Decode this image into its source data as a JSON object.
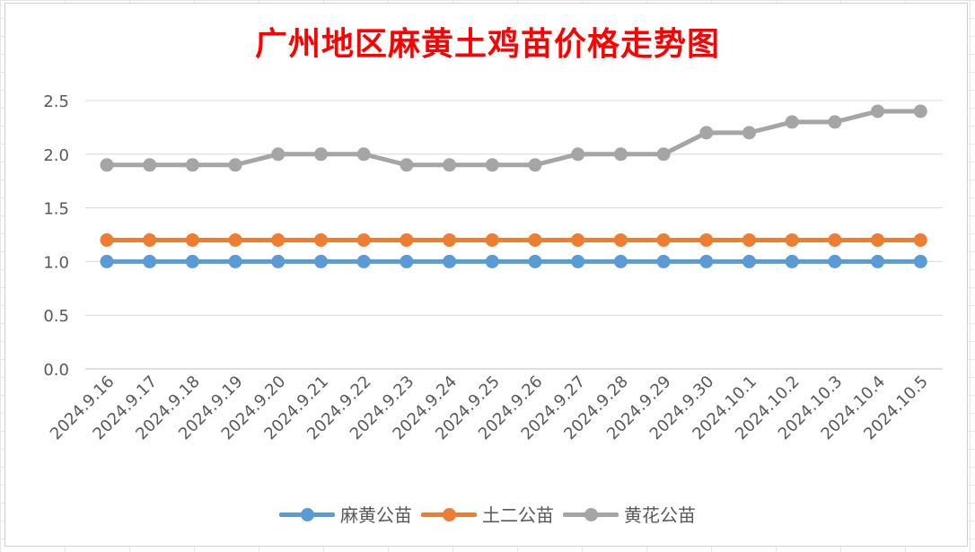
{
  "chart_data": {
    "type": "line",
    "title": "广州地区麻黄土鸡苗价格走势图",
    "categories": [
      "2024.9.16",
      "2024.9.17",
      "2024.9.18",
      "2024.9.19",
      "2024.9.20",
      "2024.9.21",
      "2024.9.22",
      "2024.9.23",
      "2024.9.24",
      "2024.9.25",
      "2024.9.26",
      "2024.9.27",
      "2024.9.28",
      "2024.9.29",
      "2024.9.30",
      "2024.10.1",
      "2024.10.2",
      "2024.10.3",
      "2024.10.4",
      "2024.10.5"
    ],
    "yticks": [
      "0.0",
      "0.5",
      "1.0",
      "1.5",
      "2.0",
      "2.5"
    ],
    "ylim": [
      0,
      2.5
    ],
    "grid": true,
    "legend_position": "bottom",
    "series": [
      {
        "name": "麻黄公苗",
        "color": "#5b9bd5",
        "values": [
          1.0,
          1.0,
          1.0,
          1.0,
          1.0,
          1.0,
          1.0,
          1.0,
          1.0,
          1.0,
          1.0,
          1.0,
          1.0,
          1.0,
          1.0,
          1.0,
          1.0,
          1.0,
          1.0,
          1.0
        ]
      },
      {
        "name": "土二公苗",
        "color": "#ed7d31",
        "values": [
          1.2,
          1.2,
          1.2,
          1.2,
          1.2,
          1.2,
          1.2,
          1.2,
          1.2,
          1.2,
          1.2,
          1.2,
          1.2,
          1.2,
          1.2,
          1.2,
          1.2,
          1.2,
          1.2,
          1.2
        ]
      },
      {
        "name": "黄花公苗",
        "color": "#a5a5a5",
        "values": [
          1.9,
          1.9,
          1.9,
          1.9,
          2.0,
          2.0,
          2.0,
          1.9,
          1.9,
          1.9,
          1.9,
          2.0,
          2.0,
          2.0,
          2.2,
          2.2,
          2.3,
          2.3,
          2.4,
          2.4
        ]
      }
    ]
  }
}
